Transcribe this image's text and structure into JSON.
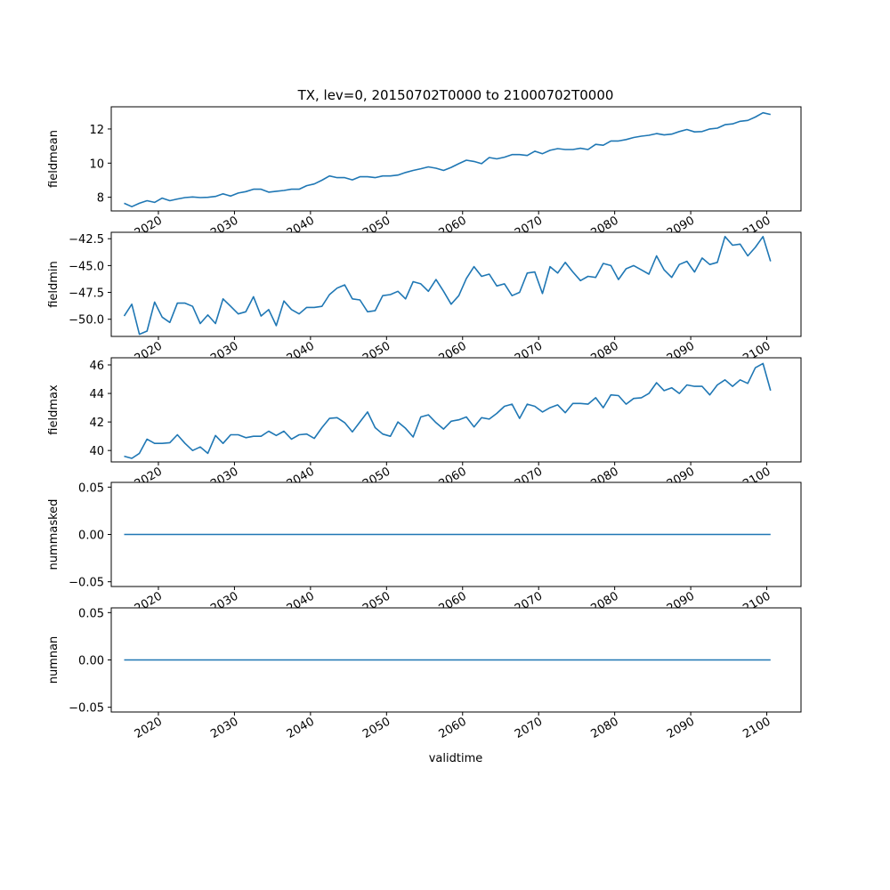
{
  "chart_data": {
    "type": "line",
    "title": "TX, lev=0, 20150702T0000 to 21000702T0000",
    "xlabel": "validtime",
    "x_start_year": 2015,
    "x_end_year": 2100,
    "xlim": [
      2013.8,
      2104.5
    ],
    "x_ticks": [
      2020,
      2030,
      2040,
      2050,
      2060,
      2070,
      2080,
      2090,
      2100
    ],
    "x_tick_labels": [
      "2020",
      "2030",
      "2040",
      "2050",
      "2060",
      "2070",
      "2080",
      "2090",
      "2100"
    ],
    "panels": [
      {
        "name": "fieldmean",
        "ylabel": "fieldmean",
        "ylim": [
          7.2,
          13.3
        ],
        "y_ticks": [
          8,
          10,
          12
        ],
        "y_tick_labels": [
          "8",
          "10",
          "12"
        ],
        "values": [
          7.65,
          7.45,
          7.65,
          7.8,
          7.7,
          7.95,
          7.8,
          7.9,
          7.98,
          8.02,
          7.98,
          8.0,
          8.05,
          8.2,
          8.07,
          8.25,
          8.33,
          8.47,
          8.47,
          8.3,
          8.35,
          8.4,
          8.47,
          8.47,
          8.68,
          8.78,
          9.0,
          9.25,
          9.15,
          9.15,
          9.02,
          9.2,
          9.2,
          9.15,
          9.25,
          9.25,
          9.3,
          9.45,
          9.57,
          9.67,
          9.78,
          9.7,
          9.57,
          9.75,
          9.97,
          10.17,
          10.1,
          9.97,
          10.33,
          10.25,
          10.35,
          10.5,
          10.5,
          10.45,
          10.7,
          10.55,
          10.75,
          10.85,
          10.8,
          10.8,
          10.87,
          10.8,
          11.1,
          11.05,
          11.3,
          11.3,
          11.38,
          11.5,
          11.58,
          11.63,
          11.73,
          11.65,
          11.7,
          11.85,
          11.97,
          11.83,
          11.85,
          12.0,
          12.05,
          12.25,
          12.3,
          12.45,
          12.5,
          12.7,
          12.95,
          12.85
        ]
      },
      {
        "name": "fieldmin",
        "ylabel": "fieldmin",
        "ylim": [
          -51.6,
          -41.9
        ],
        "y_ticks": [
          -50.0,
          -47.5,
          -45.0,
          -42.5
        ],
        "y_tick_labels": [
          "−50.0",
          "−47.5",
          "−45.0",
          "−42.5"
        ],
        "values": [
          -49.7,
          -48.6,
          -51.4,
          -51.1,
          -48.4,
          -49.8,
          -50.3,
          -48.5,
          -48.5,
          -48.8,
          -50.4,
          -49.6,
          -50.4,
          -48.1,
          -48.8,
          -49.5,
          -49.3,
          -47.9,
          -49.7,
          -49.1,
          -50.6,
          -48.3,
          -49.1,
          -49.5,
          -48.9,
          -48.9,
          -48.8,
          -47.7,
          -47.1,
          -46.8,
          -48.1,
          -48.2,
          -49.3,
          -49.2,
          -47.8,
          -47.7,
          -47.4,
          -48.1,
          -46.5,
          -46.7,
          -47.4,
          -46.3,
          -47.4,
          -48.6,
          -47.8,
          -46.2,
          -45.1,
          -46.0,
          -45.8,
          -46.9,
          -46.7,
          -47.8,
          -47.5,
          -45.7,
          -45.6,
          -47.6,
          -45.1,
          -45.7,
          -44.7,
          -45.6,
          -46.4,
          -46.0,
          -46.1,
          -44.8,
          -45.0,
          -46.3,
          -45.3,
          -45.0,
          -45.4,
          -45.8,
          -44.1,
          -45.4,
          -46.1,
          -44.9,
          -44.6,
          -45.6,
          -44.3,
          -44.9,
          -44.7,
          -42.3,
          -43.1,
          -43.0,
          -44.1,
          -43.3,
          -42.3,
          -44.6
        ]
      },
      {
        "name": "fieldmax",
        "ylabel": "fieldmax",
        "ylim": [
          39.2,
          46.5
        ],
        "y_ticks": [
          40,
          42,
          44,
          46
        ],
        "y_tick_labels": [
          "40",
          "42",
          "44",
          "46"
        ],
        "values": [
          39.6,
          39.45,
          39.8,
          40.8,
          40.5,
          40.5,
          40.55,
          41.1,
          40.5,
          40.0,
          40.25,
          39.8,
          41.05,
          40.5,
          41.1,
          41.1,
          40.9,
          41.0,
          41.0,
          41.35,
          41.05,
          41.35,
          40.8,
          41.1,
          41.15,
          40.85,
          41.6,
          42.25,
          42.3,
          41.95,
          41.3,
          42.0,
          42.7,
          41.6,
          41.15,
          41.0,
          42.0,
          41.55,
          40.95,
          42.35,
          42.5,
          41.95,
          41.5,
          42.05,
          42.15,
          42.35,
          41.65,
          42.3,
          42.2,
          42.6,
          43.1,
          43.25,
          42.25,
          43.25,
          43.1,
          42.7,
          43.0,
          43.2,
          42.65,
          43.3,
          43.3,
          43.25,
          43.7,
          43.0,
          43.9,
          43.85,
          43.25,
          43.65,
          43.7,
          44.0,
          44.75,
          44.2,
          44.4,
          44.0,
          44.6,
          44.5,
          44.5,
          43.9,
          44.6,
          44.95,
          44.5,
          44.95,
          44.7,
          45.8,
          46.1,
          44.2
        ]
      },
      {
        "name": "nummasked",
        "ylabel": "nummasked",
        "ylim": [
          -0.055,
          0.055
        ],
        "y_ticks": [
          -0.05,
          0.0,
          0.05
        ],
        "y_tick_labels": [
          "−0.05",
          "0.00",
          "0.05"
        ],
        "constant": 0
      },
      {
        "name": "numnan",
        "ylabel": "numnan",
        "ylim": [
          -0.055,
          0.055
        ],
        "y_ticks": [
          -0.05,
          0.0,
          0.05
        ],
        "y_tick_labels": [
          "−0.05",
          "0.00",
          "0.05"
        ],
        "constant": 0
      }
    ],
    "grid": false,
    "legend": "none",
    "line_color": "#1f77b4"
  }
}
